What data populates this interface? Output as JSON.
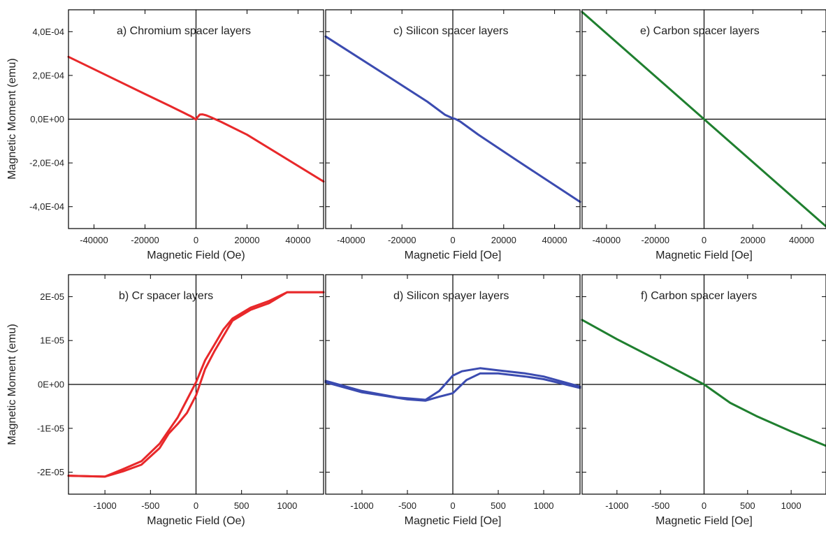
{
  "chart_data": [
    {
      "id": "a",
      "type": "line",
      "title": "a) Chromium spacer layers",
      "xlabel": "Magnetic Field (Oe)",
      "ylabel": "Magnetic Moment (emu)",
      "xlim": [
        -50000,
        50000
      ],
      "ylim": [
        -0.0005,
        0.0005
      ],
      "xticks": [
        -40000,
        -20000,
        0,
        20000,
        40000
      ],
      "xtick_labels": [
        "-40000",
        "-20000",
        "0",
        "20000",
        "40000"
      ],
      "yticks": [
        0.0004,
        0.0002,
        0,
        -0.0002,
        -0.0004
      ],
      "ytick_labels": [
        "4,0E-04",
        "2,0E-04",
        "0,0E+00",
        "-2,0E-04",
        "-4,0E-04"
      ],
      "color": "#e8282a",
      "series": [
        {
          "x": [
            -50000,
            -20000,
            -10000,
            -5000,
            -3000,
            -2000,
            -1000,
            0,
            500,
            1500,
            2500,
            4000,
            6000,
            10000,
            20000,
            50000
          ],
          "y": [
            0.000285,
            0.000115,
            5.9e-05,
            3.05e-05,
            1.9e-05,
            1.3e-05,
            6e-06,
            -2e-06,
            8e-06,
            2.1e-05,
            2.2e-05,
            1.75e-05,
            8e-06,
            -1.3e-05,
            -7.1e-05,
            -0.000285
          ]
        }
      ]
    },
    {
      "id": "c",
      "type": "line",
      "title": "c) Silicon spacer layers",
      "xlabel": "Magnetic Field [Oe]",
      "ylabel": "",
      "xlim": [
        -50000,
        50000
      ],
      "ylim": [
        -0.0005,
        0.0005
      ],
      "xticks": [
        -40000,
        -20000,
        0,
        20000,
        40000
      ],
      "xtick_labels": [
        "-40000",
        "-20000",
        "0",
        "20000",
        "40000"
      ],
      "yticks": [
        0.0004,
        0.0002,
        0,
        -0.0002,
        -0.0004
      ],
      "ytick_labels": [],
      "color": "#3b4bb0",
      "series": [
        {
          "x": [
            -50000,
            -25000,
            -10000,
            -3000,
            0,
            1000,
            3000,
            10000,
            25000,
            50000
          ],
          "y": [
            0.000378,
            0.000192,
            8e-05,
            1.95e-05,
            4e-06,
            1e-06,
            -1.15e-05,
            -7.05e-05,
            -0.000187,
            -0.000378
          ]
        }
      ]
    },
    {
      "id": "e",
      "type": "line",
      "title": "e) Carbon spacer layers",
      "xlabel": "Magnetic Field [Oe]",
      "ylabel": "",
      "xlim": [
        -50000,
        50000
      ],
      "ylim": [
        -0.0005,
        0.0005
      ],
      "xticks": [
        -40000,
        -20000,
        0,
        20000,
        40000
      ],
      "xtick_labels": [
        "-40000",
        "-20000",
        "0",
        "20000",
        "40000"
      ],
      "yticks": [
        0.0004,
        0.0002,
        0,
        -0.0002,
        -0.0004
      ],
      "ytick_labels": [],
      "color": "#1f7f2f",
      "series": [
        {
          "x": [
            -50000,
            0,
            50000
          ],
          "y": [
            0.00049,
            0,
            -0.00049
          ]
        }
      ]
    },
    {
      "id": "b",
      "type": "line",
      "title": "b) Cr spacer layers",
      "xlabel": "Magnetic Field (Oe)",
      "ylabel": "Magnetic Moment (emu)",
      "xlim": [
        -1400,
        1400
      ],
      "ylim": [
        -2.5e-05,
        2.5e-05
      ],
      "xticks": [
        -1000,
        -500,
        0,
        500,
        1000
      ],
      "xtick_labels": [
        "-1000",
        "-500",
        "0",
        "500",
        "1000"
      ],
      "yticks": [
        2e-05,
        1e-05,
        0,
        -1e-05,
        -2e-05
      ],
      "ytick_labels": [
        "2E-05",
        "1E-05",
        "0E+00",
        "-1E-05",
        "-2E-05"
      ],
      "color": "#e8282a",
      "series": [
        {
          "name": "",
          "x": [
            -1400,
            -1000,
            -800,
            -600,
            -400,
            -200,
            -100,
            0,
            100,
            200,
            300,
            400,
            600,
            800,
            1000,
            1400
          ],
          "y": [
            -2.08e-05,
            -2.1e-05,
            -1.93e-05,
            -1.75e-05,
            -1.35e-05,
            -7.5e-06,
            -3.5e-06,
            5e-07,
            5.5e-06,
            9e-06,
            1.25e-05,
            1.5e-05,
            1.75e-05,
            1.9e-05,
            2.1e-05,
            2.1e-05
          ]
        },
        {
          "name": "",
          "x": [
            1400,
            1000,
            800,
            600,
            400,
            200,
            100,
            0,
            -100,
            -200,
            -300,
            -400,
            -600,
            -800,
            -1000,
            -1400
          ],
          "y": [
            2.1e-05,
            2.1e-05,
            1.85e-05,
            1.7e-05,
            1.45e-05,
            7.5e-06,
            3.5e-06,
            -2.5e-06,
            -6.5e-06,
            -9e-06,
            -1.12e-05,
            -1.45e-05,
            -1.83e-05,
            -1.98e-05,
            -2.1e-05,
            -2.08e-05
          ]
        }
      ]
    },
    {
      "id": "d",
      "type": "line",
      "title": "d) Silicon spayer layers",
      "xlabel": "Magnetic Field [Oe]",
      "ylabel": "",
      "xlim": [
        -1400,
        1400
      ],
      "ylim": [
        -2.5e-05,
        2.5e-05
      ],
      "xticks": [
        -1000,
        -500,
        0,
        500,
        1000
      ],
      "xtick_labels": [
        "-1000",
        "-500",
        "0",
        "500",
        "1000"
      ],
      "yticks": [
        2e-05,
        1e-05,
        0,
        -1e-05,
        -2e-05
      ],
      "ytick_labels": [],
      "color": "#3b4bb0",
      "series": [
        {
          "name": "",
          "x": [
            -1400,
            -1000,
            -600,
            -300,
            -150,
            0,
            100,
            300,
            500,
            800,
            1000,
            1400
          ],
          "y": [
            8e-07,
            -1.5e-06,
            -3e-06,
            -3.5e-06,
            -1.5e-06,
            2e-06,
            3e-06,
            3.7e-06,
            3.2e-06,
            2.5e-06,
            1.8e-06,
            -5e-07
          ]
        },
        {
          "name": "",
          "x": [
            1400,
            1000,
            800,
            500,
            300,
            150,
            0,
            -150,
            -300,
            -500,
            -1000,
            -1400
          ],
          "y": [
            -8e-07,
            1.2e-06,
            1.8e-06,
            2.5e-06,
            2.5e-06,
            1e-06,
            -2e-06,
            -2.8e-06,
            -3.7e-06,
            -3.4e-06,
            -1.8e-06,
            5e-07
          ]
        }
      ]
    },
    {
      "id": "f",
      "type": "line",
      "title": "f) Carbon spacer layers",
      "xlabel": "Magnetic Field [Oe]",
      "ylabel": "",
      "xlim": [
        -1400,
        1400
      ],
      "ylim": [
        -2.5e-05,
        2.5e-05
      ],
      "xticks": [
        -1000,
        -500,
        0,
        500,
        1000
      ],
      "xtick_labels": [
        "-1000",
        "-500",
        "0",
        "500",
        "1000"
      ],
      "yticks": [
        2e-05,
        1e-05,
        0,
        -1e-05,
        -2e-05
      ],
      "ytick_labels": [],
      "color": "#1f7f2f",
      "series": [
        {
          "x": [
            -1400,
            -1000,
            -500,
            0,
            300,
            600,
            1000,
            1400
          ],
          "y": [
            1.47e-05,
            1.03e-05,
            5.2e-06,
            0,
            -4.2e-06,
            -7.2e-06,
            -1.07e-05,
            -1.4e-05
          ]
        }
      ]
    }
  ]
}
